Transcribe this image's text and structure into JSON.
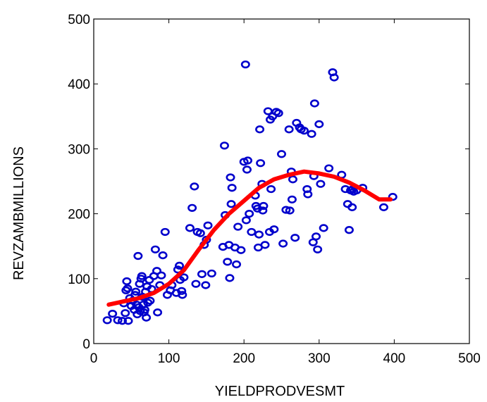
{
  "chart_data": {
    "type": "scatter",
    "title": "",
    "xlabel": "YIELDPRODVESMT",
    "ylabel": "REVZAMBMILLIONS",
    "xlim": [
      0,
      500
    ],
    "ylim": [
      0,
      500
    ],
    "x_ticks": [
      0,
      100,
      200,
      300,
      400,
      500
    ],
    "y_ticks": [
      0,
      100,
      200,
      300,
      400,
      500
    ],
    "x_tick_labels": [
      "0",
      "100",
      "200",
      "300",
      "400",
      "500"
    ],
    "y_tick_labels": [
      "0",
      "100",
      "200",
      "300",
      "400",
      "500"
    ],
    "grid": false,
    "legend": "none",
    "colors": {
      "points": "#0000cc",
      "fit": "#ff0000",
      "axis": "#000000"
    },
    "points": [
      [
        18,
        36
      ],
      [
        25,
        46
      ],
      [
        32,
        36
      ],
      [
        38,
        35
      ],
      [
        40,
        62
      ],
      [
        42,
        47
      ],
      [
        43,
        82
      ],
      [
        44,
        96
      ],
      [
        45,
        85
      ],
      [
        46,
        35
      ],
      [
        48,
        70
      ],
      [
        50,
        58
      ],
      [
        52,
        66
      ],
      [
        54,
        52
      ],
      [
        55,
        75
      ],
      [
        56,
        80
      ],
      [
        57,
        60
      ],
      [
        58,
        45
      ],
      [
        59,
        135
      ],
      [
        60,
        56
      ],
      [
        61,
        92
      ],
      [
        62,
        50
      ],
      [
        63,
        100
      ],
      [
        64,
        104
      ],
      [
        65,
        72
      ],
      [
        66,
        60
      ],
      [
        67,
        48
      ],
      [
        68,
        52
      ],
      [
        69,
        80
      ],
      [
        70,
        40
      ],
      [
        71,
        88
      ],
      [
        72,
        63
      ],
      [
        74,
        98
      ],
      [
        75,
        66
      ],
      [
        77,
        84
      ],
      [
        80,
        104
      ],
      [
        82,
        145
      ],
      [
        84,
        112
      ],
      [
        85,
        48
      ],
      [
        88,
        90
      ],
      [
        90,
        105
      ],
      [
        92,
        136
      ],
      [
        95,
        172
      ],
      [
        98,
        75
      ],
      [
        102,
        82
      ],
      [
        104,
        90
      ],
      [
        110,
        78
      ],
      [
        112,
        114
      ],
      [
        114,
        120
      ],
      [
        115,
        98
      ],
      [
        117,
        81
      ],
      [
        118,
        75
      ],
      [
        120,
        102
      ],
      [
        128,
        178
      ],
      [
        131,
        209
      ],
      [
        134,
        242
      ],
      [
        136,
        92
      ],
      [
        138,
        172
      ],
      [
        142,
        170
      ],
      [
        144,
        107
      ],
      [
        147,
        152
      ],
      [
        149,
        90
      ],
      [
        150,
        160
      ],
      [
        152,
        182
      ],
      [
        157,
        108
      ],
      [
        172,
        149
      ],
      [
        174,
        305
      ],
      [
        175,
        198
      ],
      [
        178,
        126
      ],
      [
        180,
        152
      ],
      [
        181,
        101
      ],
      [
        182,
        256
      ],
      [
        183,
        215
      ],
      [
        184,
        240
      ],
      [
        188,
        148
      ],
      [
        190,
        122
      ],
      [
        192,
        180
      ],
      [
        196,
        144
      ],
      [
        200,
        280
      ],
      [
        202,
        430
      ],
      [
        203,
        190
      ],
      [
        204,
        268
      ],
      [
        205,
        282
      ],
      [
        207,
        200
      ],
      [
        210,
        172
      ],
      [
        215,
        228
      ],
      [
        216,
        212
      ],
      [
        218,
        208
      ],
      [
        219,
        148
      ],
      [
        220,
        168
      ],
      [
        221,
        330
      ],
      [
        222,
        278
      ],
      [
        224,
        246
      ],
      [
        225,
        205
      ],
      [
        226,
        212
      ],
      [
        228,
        152
      ],
      [
        232,
        358
      ],
      [
        234,
        172
      ],
      [
        235,
        345
      ],
      [
        236,
        238
      ],
      [
        238,
        350
      ],
      [
        240,
        176
      ],
      [
        243,
        357
      ],
      [
        246,
        355
      ],
      [
        250,
        292
      ],
      [
        252,
        154
      ],
      [
        256,
        206
      ],
      [
        260,
        330
      ],
      [
        261,
        205
      ],
      [
        263,
        265
      ],
      [
        264,
        222
      ],
      [
        265,
        253
      ],
      [
        268,
        163
      ],
      [
        270,
        340
      ],
      [
        274,
        333
      ],
      [
        276,
        330
      ],
      [
        280,
        328
      ],
      [
        284,
        238
      ],
      [
        285,
        230
      ],
      [
        290,
        323
      ],
      [
        292,
        156
      ],
      [
        293,
        258
      ],
      [
        294,
        370
      ],
      [
        296,
        165
      ],
      [
        298,
        145
      ],
      [
        300,
        338
      ],
      [
        302,
        246
      ],
      [
        306,
        178
      ],
      [
        313,
        270
      ],
      [
        318,
        418
      ],
      [
        320,
        410
      ],
      [
        330,
        260
      ],
      [
        335,
        238
      ],
      [
        338,
        215
      ],
      [
        340,
        175
      ],
      [
        342,
        236
      ],
      [
        344,
        210
      ],
      [
        345,
        238
      ],
      [
        346,
        234
      ],
      [
        350,
        236
      ],
      [
        358,
        240
      ],
      [
        386,
        210
      ],
      [
        398,
        226
      ]
    ],
    "fit_curve": {
      "x": [
        20,
        40,
        60,
        80,
        100,
        120,
        140,
        160,
        180,
        200,
        220,
        240,
        260,
        280,
        300,
        320,
        340,
        360,
        380,
        395
      ],
      "y": [
        60,
        65,
        70,
        78,
        92,
        113,
        145,
        175,
        200,
        220,
        240,
        253,
        260,
        265,
        262,
        257,
        248,
        236,
        222,
        222
      ]
    }
  }
}
